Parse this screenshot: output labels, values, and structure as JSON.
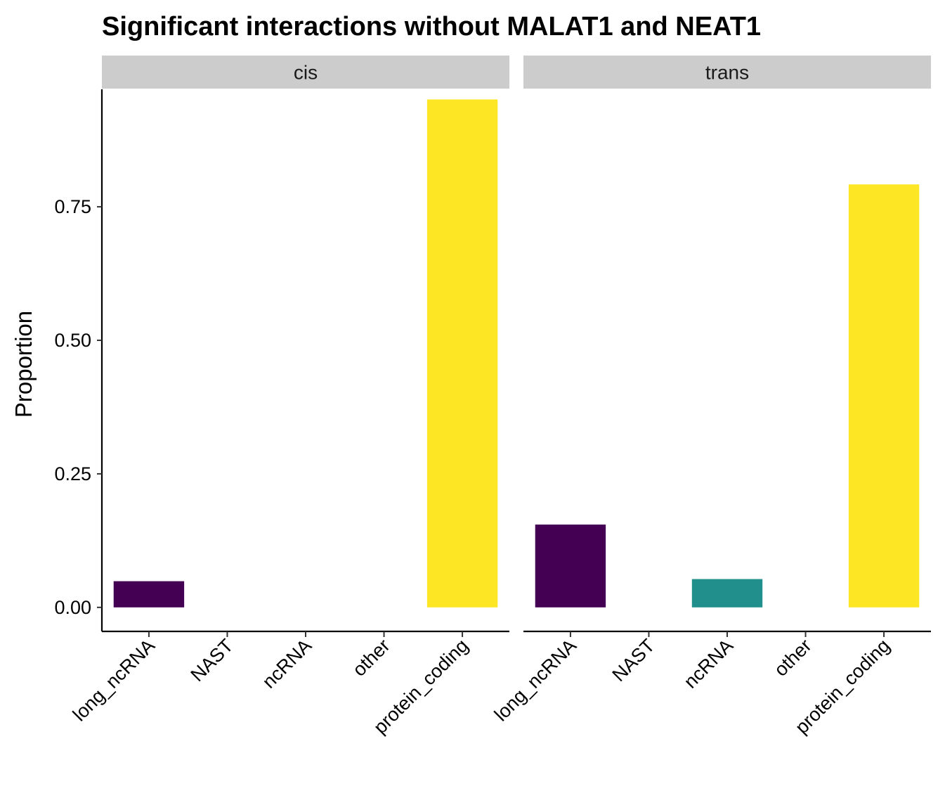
{
  "chart_data": {
    "type": "bar",
    "title": "Significant interactions without MALAT1 and NEAT1",
    "xlabel": "",
    "ylabel": "Proportion",
    "ylim": [
      -0.045,
      0.97
    ],
    "yticks": [
      0.0,
      0.25,
      0.5,
      0.75
    ],
    "ytick_labels": [
      "0.00",
      "0.25",
      "0.50",
      "0.75"
    ],
    "categories": [
      "long_ncRNA",
      "NAST",
      "ncRNA",
      "other",
      "protein_coding"
    ],
    "category_colors": {
      "long_ncRNA": "#440154",
      "NAST": "#3B528B",
      "ncRNA": "#21908C",
      "other": "#5DC863",
      "protein_coding": "#FDE725"
    },
    "strip_fill": "#CCCCCC",
    "grid": false,
    "legend": "none",
    "panels": [
      {
        "strip": "cis",
        "values": [
          0.049,
          0.0,
          0.0,
          0.0,
          0.951
        ]
      },
      {
        "strip": "trans",
        "values": [
          0.155,
          0.0,
          0.053,
          0.0,
          0.792
        ]
      }
    ]
  }
}
